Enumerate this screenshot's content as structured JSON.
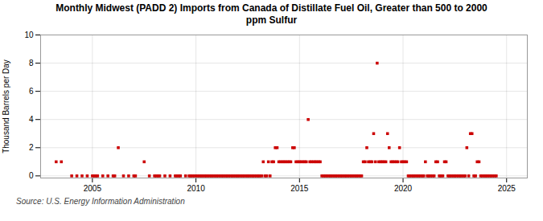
{
  "chart_data": {
    "type": "scatter",
    "title": "Monthly Midwest (PADD 2) Imports from Canada of Distillate Fuel Oil, Greater than 500 to 2000\nppm Sulfur",
    "ylabel": "Thousand Barrels per Day",
    "source": "Source: U.S. Energy Information Administration",
    "color": "#cc0000",
    "marker": "square",
    "grid": true,
    "xlim": [
      2002.5,
      2026.0
    ],
    "ylim": [
      -0.15,
      10
    ],
    "xticks": [
      2005,
      2010,
      2015,
      2020,
      2025
    ],
    "yticks": [
      0,
      2,
      4,
      6,
      8,
      10
    ],
    "x": [
      2003.25,
      2003.5,
      2004.0,
      2004.25,
      2004.5,
      2004.75,
      2005.0,
      2005.08,
      2005.17,
      2005.25,
      2005.5,
      2005.75,
      2006.0,
      2006.08,
      2006.25,
      2006.5,
      2006.75,
      2007.0,
      2007.08,
      2007.5,
      2007.75,
      2008.0,
      2008.08,
      2008.17,
      2008.25,
      2008.5,
      2008.75,
      2009.0,
      2009.08,
      2009.17,
      2009.25,
      2009.5,
      2009.67,
      2009.75,
      2009.83,
      2009.92,
      2010.0,
      2010.08,
      2010.17,
      2010.25,
      2010.33,
      2010.42,
      2010.5,
      2010.58,
      2010.67,
      2010.75,
      2010.83,
      2010.92,
      2011.0,
      2011.08,
      2011.17,
      2011.25,
      2011.33,
      2011.42,
      2011.5,
      2011.58,
      2011.67,
      2011.75,
      2011.83,
      2011.92,
      2012.0,
      2012.08,
      2012.17,
      2012.25,
      2012.33,
      2012.42,
      2012.5,
      2012.58,
      2012.67,
      2012.75,
      2012.83,
      2012.92,
      2013.0,
      2013.08,
      2013.17,
      2013.25,
      2013.33,
      2013.42,
      2013.5,
      2013.58,
      2013.67,
      2013.75,
      2013.83,
      2013.92,
      2014.0,
      2014.08,
      2014.17,
      2014.25,
      2014.33,
      2014.42,
      2014.5,
      2014.58,
      2014.67,
      2014.75,
      2014.83,
      2014.92,
      2015.0,
      2015.08,
      2015.17,
      2015.25,
      2015.33,
      2015.42,
      2015.5,
      2015.58,
      2015.67,
      2015.75,
      2015.83,
      2015.92,
      2016.0,
      2016.08,
      2016.17,
      2016.25,
      2016.33,
      2016.42,
      2016.5,
      2016.58,
      2016.67,
      2016.75,
      2016.83,
      2016.92,
      2017.0,
      2017.08,
      2017.17,
      2017.25,
      2017.33,
      2017.42,
      2017.5,
      2017.58,
      2017.67,
      2017.75,
      2017.83,
      2017.92,
      2018.0,
      2018.08,
      2018.17,
      2018.25,
      2018.33,
      2018.42,
      2018.5,
      2018.58,
      2018.67,
      2018.75,
      2018.83,
      2018.92,
      2019.0,
      2019.08,
      2019.17,
      2019.25,
      2019.33,
      2019.42,
      2019.5,
      2019.58,
      2019.67,
      2019.75,
      2019.83,
      2019.92,
      2020.0,
      2020.08,
      2020.17,
      2020.25,
      2020.33,
      2020.42,
      2020.5,
      2020.58,
      2020.67,
      2020.75,
      2020.83,
      2020.92,
      2021.0,
      2021.08,
      2021.17,
      2021.25,
      2021.33,
      2021.42,
      2021.5,
      2021.58,
      2021.67,
      2021.75,
      2021.83,
      2021.92,
      2022.0,
      2022.08,
      2022.17,
      2022.25,
      2022.33,
      2022.42,
      2022.5,
      2022.58,
      2022.67,
      2022.75,
      2022.83,
      2022.92,
      2023.0,
      2023.08,
      2023.17,
      2023.25,
      2023.33,
      2023.42,
      2023.5,
      2023.58,
      2023.67,
      2023.75,
      2023.83,
      2023.92,
      2024.0,
      2024.08,
      2024.17,
      2024.25,
      2024.33,
      2024.42,
      2024.5
    ],
    "values": [
      1.0,
      1.0,
      0.0,
      0.0,
      0.0,
      0.0,
      0.0,
      0.0,
      0.0,
      0.0,
      0.0,
      0.0,
      0.0,
      0.0,
      2.0,
      0.0,
      0.0,
      0.0,
      0.0,
      1.0,
      0.0,
      0.0,
      0.0,
      0.0,
      0.0,
      0.0,
      0.0,
      0.0,
      0.0,
      0.0,
      0.0,
      0.0,
      0.0,
      0.0,
      0.0,
      0.0,
      0.0,
      0.0,
      0.0,
      0.0,
      0.0,
      0.0,
      0.0,
      0.0,
      0.0,
      0.0,
      0.0,
      0.0,
      0.0,
      0.0,
      0.0,
      0.0,
      0.0,
      0.0,
      0.0,
      0.0,
      0.0,
      0.0,
      0.0,
      0.0,
      0.0,
      0.0,
      0.0,
      0.0,
      0.0,
      0.0,
      0.0,
      0.0,
      0.0,
      0.0,
      0.0,
      0.0,
      0.0,
      0.0,
      0.0,
      1.0,
      0.0,
      0.0,
      1.0,
      0.0,
      1.0,
      1.0,
      2.0,
      2.0,
      1.0,
      1.0,
      1.0,
      1.0,
      1.0,
      1.0,
      1.0,
      1.0,
      2.0,
      2.0,
      1.0,
      1.0,
      1.0,
      1.0,
      1.0,
      1.0,
      1.0,
      4.0,
      1.0,
      1.0,
      1.0,
      1.0,
      1.0,
      1.0,
      1.0,
      0.0,
      0.0,
      0.0,
      0.0,
      0.0,
      0.0,
      0.0,
      0.0,
      0.0,
      0.0,
      0.0,
      0.0,
      0.0,
      0.0,
      0.0,
      0.0,
      0.0,
      0.0,
      0.0,
      0.0,
      0.0,
      0.0,
      0.0,
      0.0,
      1.0,
      1.0,
      2.0,
      1.0,
      1.0,
      1.0,
      3.0,
      1.0,
      8.0,
      1.0,
      1.0,
      1.0,
      1.0,
      1.0,
      3.0,
      2.0,
      1.0,
      1.0,
      1.0,
      1.0,
      1.0,
      2.0,
      1.0,
      1.0,
      1.0,
      1.0,
      0.0,
      0.0,
      0.0,
      0.0,
      0.0,
      0.0,
      0.0,
      0.0,
      0.0,
      0.0,
      1.0,
      0.0,
      0.0,
      0.0,
      0.0,
      0.0,
      1.0,
      1.0,
      0.0,
      0.0,
      0.0,
      1.0,
      1.0,
      0.0,
      0.0,
      0.0,
      0.0,
      0.0,
      0.0,
      0.0,
      0.0,
      0.0,
      0.0,
      0.0,
      2.0,
      0.0,
      3.0,
      3.0,
      0.0,
      0.0,
      1.0,
      1.0,
      0.0,
      0.0,
      0.0,
      0.0,
      0.0,
      0.0,
      0.0,
      0.0,
      0.0,
      0.0
    ]
  }
}
